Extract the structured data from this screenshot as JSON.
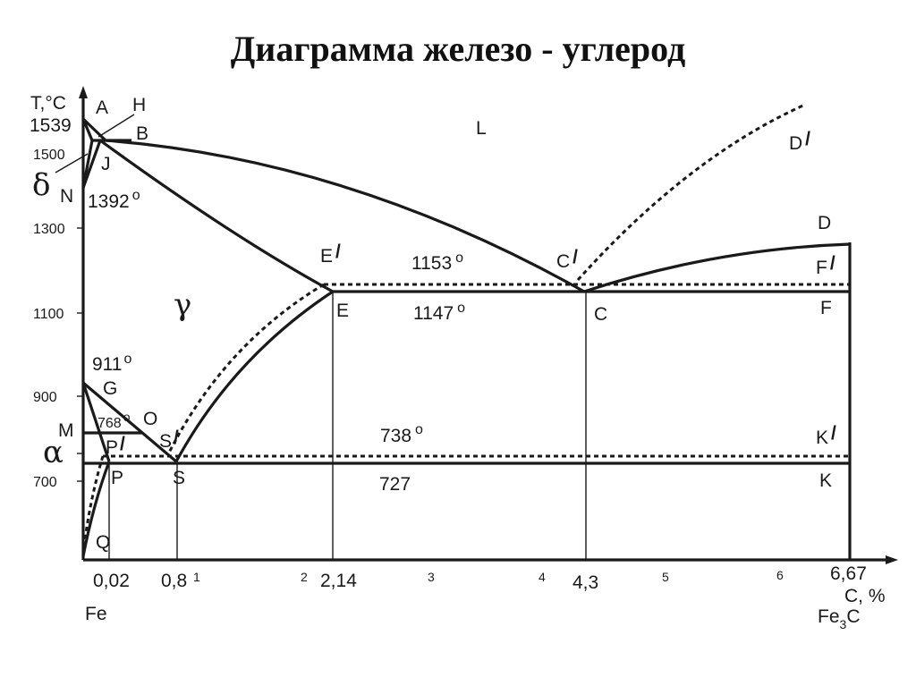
{
  "title": "Диаграмма железо - углерод",
  "axes": {
    "y_label": "T,°C",
    "x_label": "C, %",
    "y_ticks": [
      "1539",
      "1500",
      "1300",
      "1100",
      "900",
      "700"
    ],
    "x_ticks_small": [
      "1",
      "2",
      "3",
      "4",
      "5",
      "6"
    ],
    "x_special": [
      "0,02",
      "0,8",
      "2,14",
      "4,3",
      "6,67"
    ],
    "left_component": "Fe",
    "right_component": "Fe",
    "right_component_sub": "3",
    "right_component_end": "C"
  },
  "phases": {
    "liquid": "L",
    "delta": "δ",
    "gamma": "γ",
    "alpha": "α"
  },
  "points": {
    "A": "A",
    "H": "H",
    "B": "B",
    "J": "J",
    "N": "N",
    "D": "D",
    "D_prime": "D",
    "E": "E",
    "E_prime": "E",
    "C": "C",
    "C_prime": "C",
    "F": "F",
    "F_prime": "F",
    "G": "G",
    "M": "M",
    "O": "O",
    "P": "P",
    "P_prime": "P",
    "S": "S",
    "S_prime": "S",
    "K": "K",
    "K_prime": "K",
    "Q": "Q",
    "prime_mark": "/"
  },
  "temperatures": {
    "t1392": "1392",
    "t1153": "1153",
    "t1147": "1147",
    "t911": "911",
    "t768": "768",
    "t738": "738",
    "t727": "727",
    "degree": "o"
  }
}
